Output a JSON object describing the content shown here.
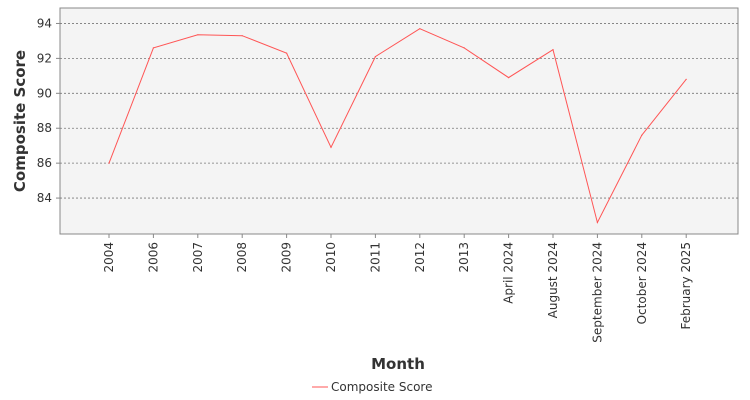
{
  "chart_data": {
    "type": "line",
    "title": "",
    "xlabel": "Month",
    "ylabel": "Composite Score",
    "categories": [
      "2004",
      "2006",
      "2007",
      "2008",
      "2009",
      "2010",
      "2011",
      "2012",
      "2013",
      "April 2024",
      "August 2024",
      "September 2024",
      "October 2024",
      "February 2025"
    ],
    "series": [
      {
        "name": "Composite Score",
        "color": "#ff5555",
        "values": [
          86.0,
          92.6,
          93.35,
          93.3,
          92.3,
          86.9,
          92.1,
          93.7,
          92.6,
          90.9,
          92.5,
          82.6,
          87.6,
          90.8
        ]
      }
    ],
    "y_ticks": [
      84,
      86,
      88,
      90,
      92,
      94
    ],
    "ylim": [
      82.0,
      95.0
    ],
    "grid": true,
    "legend_position": "bottom-center"
  }
}
